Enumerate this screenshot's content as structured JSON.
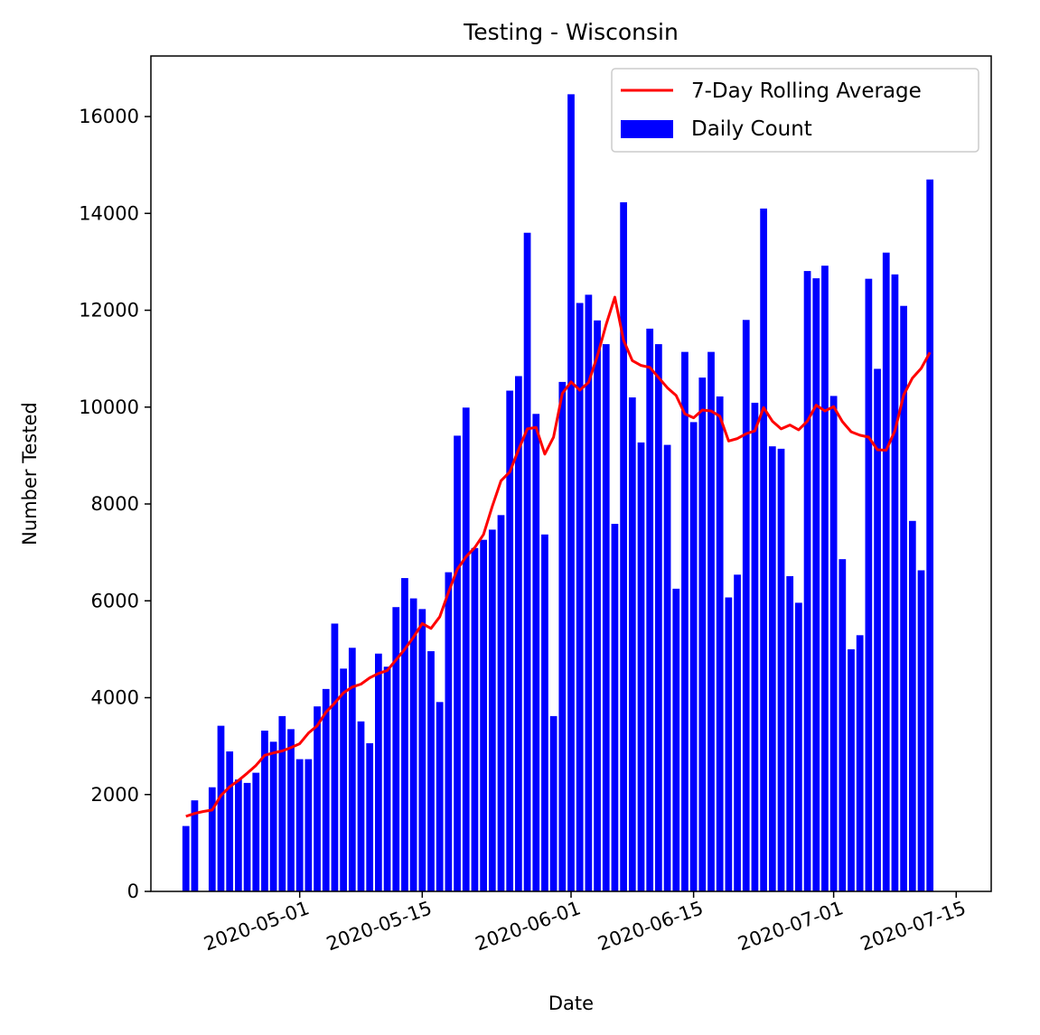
{
  "chart_data": {
    "type": "bar",
    "title": "Testing - Wisconsin",
    "xlabel": "Date",
    "ylabel": "Number Tested",
    "ylim": [
      0,
      17250
    ],
    "xlim": [
      "2020-04-14",
      "2020-07-19"
    ],
    "grid": false,
    "legend_position": "top-right",
    "x_ticks": [
      "2020-05-01",
      "2020-05-15",
      "2020-06-01",
      "2020-06-15",
      "2020-07-01",
      "2020-07-15"
    ],
    "y_ticks": [
      0,
      2000,
      4000,
      6000,
      8000,
      10000,
      12000,
      14000,
      16000
    ],
    "start_date": "2020-04-18",
    "end_date": "2020-07-15",
    "series": [
      {
        "name": "Daily Count",
        "kind": "bar",
        "color": "#0000ff",
        "values": [
          1350,
          1880,
          0,
          2150,
          3420,
          2890,
          2310,
          2240,
          2450,
          3320,
          3090,
          3620,
          3350,
          2730,
          2730,
          3820,
          4180,
          5530,
          4600,
          5030,
          3510,
          3060,
          4910,
          4640,
          5870,
          6470,
          6050,
          5830,
          4960,
          3910,
          6590,
          9410,
          9990,
          7090,
          7260,
          7470,
          7770,
          10340,
          10640,
          13600,
          9860,
          7370,
          3620,
          10520,
          16460,
          12150,
          12320,
          11790,
          11300,
          7590,
          14230,
          10200,
          9270,
          11620,
          11300,
          9220,
          6250,
          11140,
          9690,
          10610,
          11140,
          10220,
          6070,
          6540,
          11800,
          10090,
          14100,
          9190,
          9140,
          6510,
          5960,
          12810,
          12660,
          12920,
          10230,
          6860,
          5000,
          5290,
          12650,
          10790,
          13190,
          12740,
          12090,
          7650,
          6630,
          14700
        ]
      },
      {
        "name": "7-Day Rolling Average",
        "kind": "line",
        "color": "#ff0000",
        "values": [
          1550,
          1610,
          1650,
          1680,
          1980,
          2160,
          2290,
          2440,
          2600,
          2810,
          2860,
          2900,
          2970,
          3050,
          3270,
          3420,
          3700,
          3890,
          4100,
          4220,
          4280,
          4410,
          4500,
          4560,
          4780,
          5000,
          5250,
          5530,
          5430,
          5670,
          6180,
          6650,
          6910,
          7100,
          7370,
          7950,
          8480,
          8660,
          9120,
          9550,
          9580,
          9030,
          9380,
          10280,
          10520,
          10350,
          10510,
          11050,
          11700,
          12270,
          11380,
          10960,
          10860,
          10820,
          10610,
          10400,
          10240,
          9860,
          9780,
          9940,
          9920,
          9810,
          9300,
          9350,
          9450,
          9510,
          9990,
          9710,
          9550,
          9630,
          9530,
          9710,
          10040,
          9920,
          10010,
          9700,
          9490,
          9420,
          9380,
          9120,
          9110,
          9510,
          10250,
          10600,
          10800,
          11130
        ]
      }
    ]
  }
}
